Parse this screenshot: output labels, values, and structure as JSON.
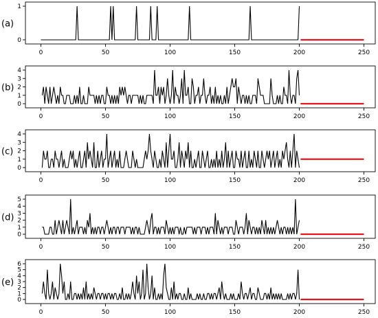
{
  "figure": {
    "line_color": "#000000",
    "forecast_color": "#e8141b"
  },
  "chart_data": [
    {
      "type": "line",
      "panel_label": "(a)",
      "xlim": [
        0,
        250
      ],
      "ylim": [
        0,
        1
      ],
      "x_ticks": [
        0,
        50,
        100,
        150,
        200,
        250
      ],
      "y_ticks": [
        0,
        1
      ],
      "grid": false,
      "series": [
        {
          "x": [
            0,
            27,
            28,
            29,
            53,
            54,
            55,
            56,
            57,
            73,
            74,
            75,
            84,
            85,
            86,
            89,
            90,
            91,
            114,
            115,
            116,
            161,
            162,
            163,
            199,
            200
          ],
          "values": [
            0,
            0,
            1,
            0,
            0,
            1,
            0,
            1,
            0,
            0,
            1,
            0,
            0,
            1,
            0,
            0,
            1,
            0,
            0,
            1,
            0,
            0,
            1,
            0,
            0,
            1
          ]
        }
      ],
      "forecast": {
        "x_start": 201,
        "x_end": 250,
        "value": 0
      }
    },
    {
      "type": "line",
      "panel_label": "(b)",
      "xlim": [
        0,
        250
      ],
      "ylim": [
        0,
        4
      ],
      "x_ticks": [
        0,
        50,
        100,
        150,
        200,
        250
      ],
      "y_ticks": [
        0,
        1,
        2,
        3,
        4
      ],
      "grid": false,
      "series": [
        {
          "x_start": 1,
          "values": [
            1,
            2,
            0,
            2,
            1,
            0,
            2,
            0,
            1,
            2,
            1,
            0,
            1,
            0,
            2,
            1,
            1,
            0,
            0,
            1,
            1,
            1,
            0,
            0,
            0,
            1,
            0,
            1,
            0,
            2,
            0,
            0,
            1,
            0,
            0,
            0,
            2,
            1,
            1,
            1,
            1,
            0,
            1,
            0,
            1,
            0,
            1,
            1,
            0,
            0,
            2,
            1,
            1,
            0,
            1,
            0,
            1,
            0,
            1,
            0,
            2,
            1,
            2,
            1,
            2,
            1,
            0,
            1,
            1,
            0,
            1,
            1,
            1,
            1,
            1,
            0,
            1,
            0,
            1,
            0,
            0,
            1,
            1,
            1,
            1,
            1,
            0,
            4,
            1,
            1,
            2,
            0,
            2,
            1,
            2,
            0,
            1,
            3,
            1,
            0,
            1,
            4,
            0,
            2,
            1,
            1,
            0,
            1,
            3,
            0,
            4,
            1,
            1,
            2,
            0,
            0,
            3,
            2,
            0,
            1,
            1,
            2,
            0,
            1,
            1,
            3,
            1,
            0,
            1,
            1,
            2,
            0,
            1,
            0,
            2,
            0,
            1,
            0,
            1,
            0,
            0,
            1,
            0,
            2,
            0,
            1,
            2,
            3,
            2,
            2,
            3,
            0,
            2,
            1,
            0,
            1,
            1,
            0,
            1,
            0,
            1,
            0,
            0,
            1,
            1,
            1,
            0,
            3,
            2,
            1,
            1,
            1,
            0,
            0,
            0,
            0,
            0,
            3,
            1,
            0,
            0,
            0,
            1,
            0,
            1,
            0,
            0,
            2,
            1,
            1,
            0,
            4,
            1,
            0,
            1,
            1,
            0,
            3,
            4,
            1
          ]
        }
      ],
      "forecast": {
        "x_start": 201,
        "x_end": 250,
        "value": 0
      }
    },
    {
      "type": "line",
      "panel_label": "(c)",
      "xlim": [
        0,
        250
      ],
      "ylim": [
        0,
        4
      ],
      "x_ticks": [
        0,
        50,
        100,
        150,
        200,
        250
      ],
      "y_ticks": [
        0,
        1,
        2,
        3,
        4
      ],
      "grid": false,
      "series": [
        {
          "x_start": 1,
          "values": [
            0,
            2,
            1,
            1,
            2,
            0,
            0,
            1,
            1,
            0,
            2,
            1,
            1,
            0,
            1,
            2,
            0,
            1,
            0,
            0,
            0,
            1,
            2,
            1,
            2,
            0,
            1,
            0,
            1,
            2,
            0,
            0,
            1,
            2,
            0,
            3,
            1,
            2,
            1,
            0,
            3,
            0,
            0,
            2,
            0,
            1,
            2,
            0,
            1,
            1,
            4,
            0,
            1,
            2,
            0,
            1,
            2,
            0,
            1,
            0,
            2,
            0,
            0,
            0,
            1,
            2,
            1,
            0,
            0,
            0,
            2,
            1,
            0,
            1,
            0,
            0,
            0,
            0,
            0,
            1,
            2,
            1,
            2,
            4,
            2,
            1,
            0,
            2,
            1,
            0,
            0,
            1,
            0,
            2,
            1,
            0,
            3,
            0,
            2,
            4,
            1,
            1,
            2,
            0,
            0,
            1,
            3,
            0,
            2,
            1,
            0,
            2,
            1,
            3,
            0,
            2,
            0,
            0,
            1,
            0,
            1,
            2,
            0,
            0,
            2,
            1,
            0,
            1,
            2,
            0,
            0,
            1,
            0,
            1,
            0,
            2,
            0,
            1,
            0,
            2,
            0,
            1,
            3,
            0,
            2,
            0,
            1,
            2,
            0,
            0,
            2,
            1,
            1,
            0,
            2,
            0,
            1,
            2,
            0,
            0,
            2,
            0,
            1,
            0,
            2,
            1,
            0,
            2,
            0,
            0,
            2,
            1,
            0,
            1,
            2,
            1,
            2,
            0,
            1,
            2,
            0,
            1,
            2,
            0,
            1,
            0,
            2,
            1,
            2,
            3,
            1,
            0,
            2,
            0,
            2,
            4,
            0,
            2,
            1,
            0
          ]
        }
      ],
      "forecast": {
        "x_start": 201,
        "x_end": 250,
        "value": 1
      }
    },
    {
      "type": "line",
      "panel_label": "(d)",
      "xlim": [
        0,
        250
      ],
      "ylim": [
        0,
        5
      ],
      "x_ticks": [
        0,
        50,
        100,
        150,
        200,
        250
      ],
      "y_ticks": [
        0,
        1,
        2,
        3,
        4,
        5
      ],
      "grid": false,
      "series": [
        {
          "x_start": 1,
          "values": [
            1,
            1,
            0,
            0,
            0,
            0,
            1,
            1,
            0,
            0,
            2,
            0,
            1,
            2,
            1,
            0,
            2,
            0,
            1,
            2,
            1,
            0,
            5,
            0,
            1,
            0,
            1,
            2,
            0,
            1,
            1,
            1,
            0,
            1,
            0,
            2,
            1,
            3,
            0,
            1,
            0,
            1,
            0,
            1,
            1,
            0,
            1,
            1,
            0,
            1,
            2,
            1,
            0,
            1,
            0,
            1,
            1,
            0,
            1,
            1,
            0,
            1,
            1,
            1,
            0,
            1,
            1,
            1,
            1,
            0,
            1,
            0,
            1,
            1,
            0,
            1,
            0,
            0,
            0,
            0,
            1,
            2,
            1,
            0,
            2,
            3,
            0,
            1,
            1,
            0,
            1,
            0,
            1,
            1,
            1,
            0,
            2,
            1,
            0,
            1,
            0,
            1,
            0,
            1,
            1,
            1,
            0,
            1,
            0,
            0,
            1,
            0,
            1,
            1,
            1,
            1,
            1,
            0,
            1,
            0,
            1,
            1,
            1,
            0,
            1,
            1,
            1,
            0,
            1,
            0,
            1,
            1,
            1,
            0,
            3,
            0,
            2,
            1,
            0,
            1,
            0,
            1,
            1,
            1,
            0,
            1,
            1,
            1,
            0,
            0,
            2,
            1,
            0,
            1,
            1,
            1,
            0,
            1,
            3,
            0,
            2,
            1,
            0,
            1,
            1,
            0,
            1,
            0,
            1,
            0,
            2,
            1,
            0,
            2,
            0,
            1,
            0,
            1,
            0,
            1,
            0,
            1,
            2,
            1,
            0,
            1,
            0,
            1,
            1,
            0,
            1,
            0,
            1,
            0,
            1,
            0,
            5,
            0,
            1,
            2
          ]
        }
      ],
      "forecast": {
        "x_start": 201,
        "x_end": 250,
        "value": 0
      }
    },
    {
      "type": "line",
      "panel_label": "(e)",
      "xlim": [
        0,
        250
      ],
      "ylim": [
        0,
        6
      ],
      "x_ticks": [
        0,
        50,
        100,
        150,
        200,
        250
      ],
      "y_ticks": [
        0,
        1,
        2,
        3,
        4,
        5,
        6
      ],
      "grid": false,
      "series": [
        {
          "x_start": 1,
          "values": [
            1,
            3,
            1,
            0,
            5,
            1,
            0,
            1,
            3,
            0,
            2,
            1,
            0,
            1,
            6,
            4,
            1,
            3,
            0,
            0,
            1,
            0,
            3,
            0,
            0,
            1,
            1,
            0,
            1,
            0,
            1,
            0,
            2,
            0,
            3,
            0,
            1,
            0,
            1,
            0,
            2,
            1,
            0,
            1,
            1,
            0,
            1,
            1,
            0,
            1,
            0,
            1,
            1,
            0,
            1,
            0,
            1,
            1,
            0,
            0,
            1,
            0,
            2,
            0,
            0,
            1,
            0,
            1,
            0,
            1,
            3,
            1,
            0,
            4,
            1,
            3,
            0,
            1,
            5,
            0,
            1,
            6,
            2,
            0,
            1,
            4,
            0,
            2,
            0,
            0,
            1,
            0,
            1,
            0,
            4,
            6,
            2,
            1,
            0,
            0,
            2,
            0,
            3,
            0,
            1,
            0,
            1,
            1,
            0,
            0,
            1,
            0,
            0,
            2,
            0,
            1,
            0,
            0,
            0,
            0,
            1,
            0,
            1,
            0,
            0,
            1,
            0,
            0,
            1,
            1,
            0,
            1,
            0,
            1,
            1,
            0,
            1,
            2,
            0,
            3,
            1,
            0,
            1,
            0,
            0,
            0,
            1,
            0,
            1,
            0,
            0,
            0,
            1,
            0,
            3,
            1,
            0,
            1,
            1,
            0,
            1,
            2,
            0,
            1,
            1,
            0,
            0,
            2,
            1,
            0,
            0,
            0,
            1,
            1,
            0,
            1,
            0,
            2,
            0,
            1,
            0,
            1,
            0,
            1,
            0,
            1,
            0,
            0,
            0,
            0,
            1,
            0,
            1,
            0,
            1,
            1,
            0,
            1,
            5,
            0
          ]
        }
      ],
      "forecast": {
        "x_start": 201,
        "x_end": 250,
        "value": 0
      }
    }
  ]
}
